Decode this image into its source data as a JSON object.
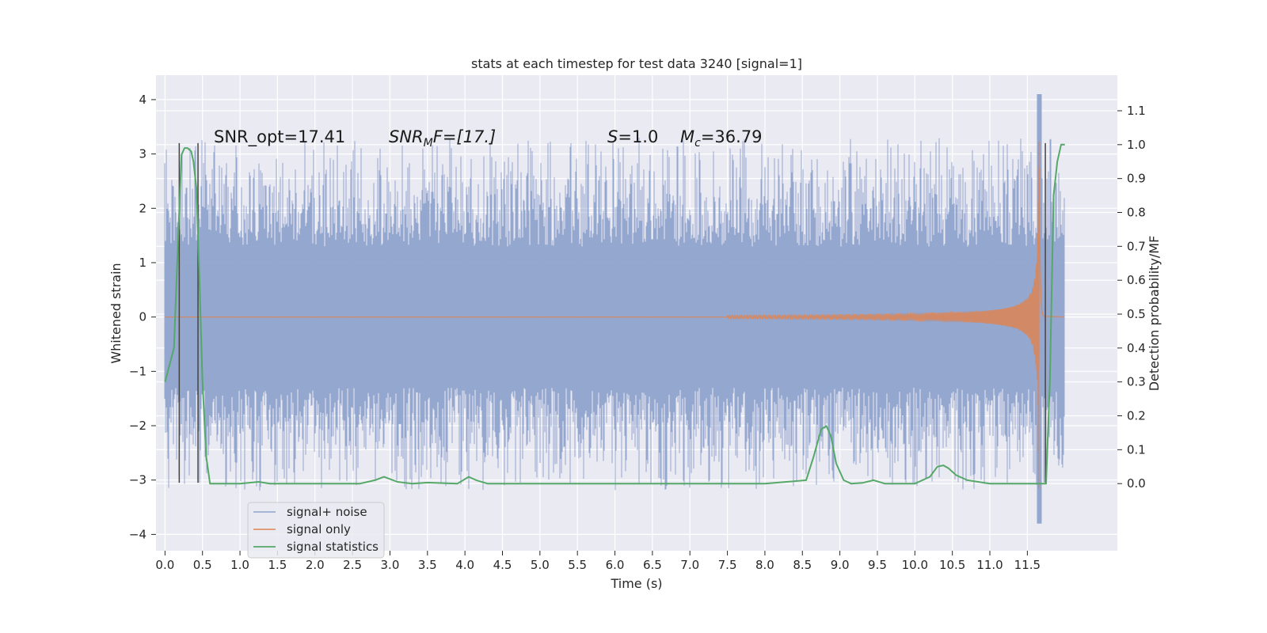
{
  "colors": {
    "background": "#eaeaf2",
    "grid": "#ffffff",
    "signal_noise": "#8fa3cc",
    "signal_only": "#dd8452",
    "signal_statistics": "#55a868",
    "markers": "#444444"
  },
  "chart_data": {
    "type": "line",
    "title": "stats at each timestep for test data 3240 [signal=1]",
    "xlabel": "Time (s)",
    "ylabel_left": "Whitened strain",
    "ylabel_right": "Detection probability/MF",
    "xlim": [
      -0.12,
      12.7
    ],
    "ylim_left": [
      -4.3,
      4.45
    ],
    "ylim_right": [
      -0.198,
      1.205
    ],
    "x_ticks": [
      "0.0",
      "0.5",
      "1.0",
      "1.5",
      "2.0",
      "2.5",
      "3.0",
      "3.5",
      "4.0",
      "4.5",
      "5.0",
      "5.5",
      "6.0",
      "6.5",
      "7.0",
      "7.5",
      "8.0",
      "8.5",
      "9.0",
      "9.5",
      "10.0",
      "10.5",
      "11.0",
      "11.5"
    ],
    "y_ticks_left": [
      4,
      3,
      2,
      1,
      0,
      -1,
      -2,
      -3,
      -4
    ],
    "y_ticks_left_labels": [
      "4",
      "3",
      "2",
      "1",
      "0",
      "−1",
      "−2",
      "−3",
      "−4"
    ],
    "y_ticks_right": [
      "1.1",
      "1.0",
      "0.9",
      "0.8",
      "0.7",
      "0.6",
      "0.5",
      "0.4",
      "0.3",
      "0.2",
      "0.1",
      "0.0"
    ],
    "grid": true,
    "legend_placement": "lower-left",
    "annotations": {
      "snr_opt": "SNR_opt=17.41",
      "snr_mf_sym": "SNR",
      "snr_mf_sub": "M",
      "snr_mf_rest": "F=[17.]",
      "s_sym": "S",
      "s_val": "=1.0",
      "mc_sym": "M",
      "mc_sub": "c",
      "mc_val": "=36.79"
    },
    "series": [
      {
        "name": "signal+ noise",
        "axis": "left",
        "description_range": "noise band approx -1.8 to 1.8 with spikes to about ±3.3; peak near 11.65 s reaching 4.1 and -3.8",
        "x_span": [
          0.0,
          11.99
        ]
      },
      {
        "name": "signal only",
        "axis": "left",
        "chirp_peak_time": 11.66,
        "peak_high": 3.85,
        "peak_low": -3.9
      },
      {
        "name": "signal statistics",
        "axis": "right",
        "x": [
          0.0,
          0.12,
          0.18,
          0.22,
          0.26,
          0.3,
          0.35,
          0.38,
          0.42,
          0.46,
          0.5,
          0.55,
          0.6,
          0.65,
          0.72,
          1.0,
          1.25,
          1.4,
          2.0,
          2.6,
          2.8,
          2.92,
          3.1,
          3.3,
          3.5,
          3.9,
          4.05,
          4.15,
          4.3,
          4.5,
          5.0,
          5.5,
          6.0,
          7.0,
          8.0,
          8.55,
          8.65,
          8.75,
          8.82,
          8.88,
          8.95,
          9.05,
          9.15,
          9.3,
          9.45,
          9.6,
          9.8,
          10.0,
          10.2,
          10.3,
          10.38,
          10.45,
          10.55,
          10.7,
          11.0,
          11.5,
          11.75,
          11.8,
          11.85,
          11.9,
          11.95,
          12.0
        ],
        "y": [
          0.3,
          0.4,
          0.75,
          0.97,
          0.99,
          0.99,
          0.98,
          0.95,
          0.87,
          0.6,
          0.3,
          0.08,
          0.0,
          0.0,
          0.0,
          0.0,
          0.005,
          0.0,
          0.0,
          0.0,
          0.01,
          0.02,
          0.005,
          0.0,
          0.003,
          0.0,
          0.02,
          0.01,
          0.0,
          0.0,
          0.0,
          0.0,
          0.0,
          0.0,
          0.0,
          0.01,
          0.08,
          0.16,
          0.17,
          0.14,
          0.06,
          0.01,
          0.0,
          0.002,
          0.01,
          0.0,
          0.0,
          0.0,
          0.02,
          0.05,
          0.054,
          0.045,
          0.025,
          0.01,
          0.0,
          0.0,
          0.0,
          0.3,
          0.85,
          0.95,
          1.0,
          1.0
        ]
      }
    ],
    "marker_lines": [
      {
        "x": 0.19,
        "y_bottom": -3.05,
        "y_top": 3.2
      },
      {
        "x": 0.44,
        "y_bottom": -3.05,
        "y_top": 3.2
      },
      {
        "x": 11.74,
        "y_bottom": -3.05,
        "y_top": 3.2
      }
    ],
    "legend": [
      "signal+ noise",
      "signal only",
      "signal statistics"
    ]
  }
}
